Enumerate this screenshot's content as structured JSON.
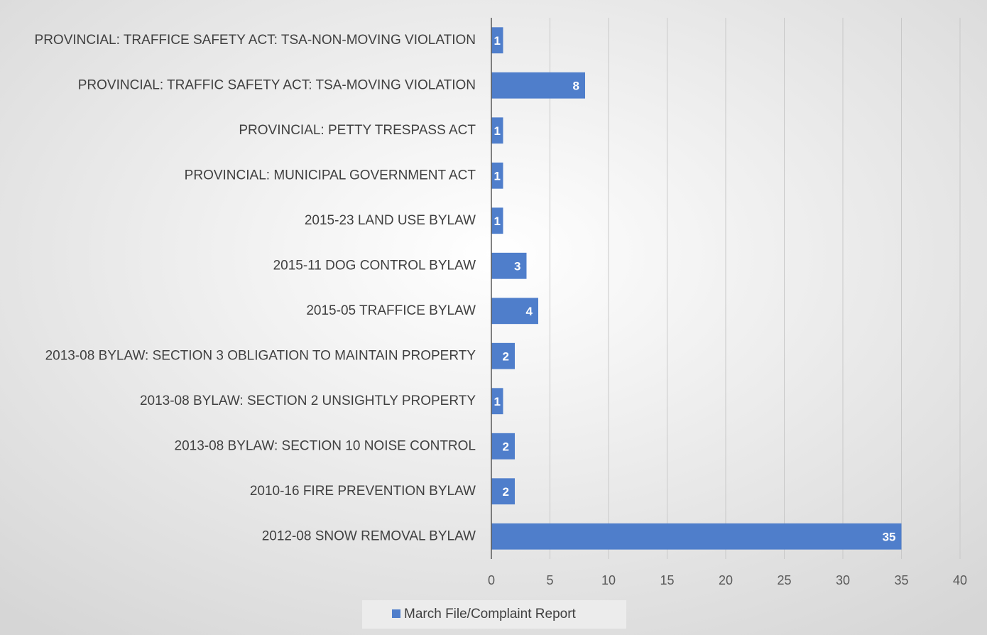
{
  "chart_data": {
    "type": "bar",
    "orientation": "horizontal",
    "categories": [
      "PROVINCIAL: TRAFFICE SAFETY ACT: TSA-NON-MOVING VIOLATION",
      "PROVINCIAL: TRAFFIC SAFETY ACT: TSA-MOVING VIOLATION",
      "PROVINCIAL: PETTY TRESPASS ACT",
      "PROVINCIAL: MUNICIPAL GOVERNMENT ACT",
      "2015-23 LAND USE BYLAW",
      "2015-11 DOG CONTROL BYLAW",
      "2015-05 TRAFFICE BYLAW",
      "2013-08 BYLAW: SECTION 3 OBLIGATION TO MAINTAIN PROPERTY",
      "2013-08 BYLAW: SECTION 2 UNSIGHTLY PROPERTY",
      "2013-08 BYLAW: SECTION 10 NOISE CONTROL",
      "2010-16 FIRE PREVENTION BYLAW",
      "2012-08 SNOW REMOVAL BYLAW"
    ],
    "series": [
      {
        "name": "March File/Complaint Report",
        "color": "#4f7ecb",
        "values": [
          1,
          8,
          1,
          1,
          1,
          3,
          4,
          2,
          1,
          2,
          2,
          35
        ]
      }
    ],
    "xlim": [
      0,
      40
    ],
    "xticks": [
      0,
      5,
      10,
      15,
      20,
      25,
      30,
      35,
      40
    ],
    "grid": true,
    "data_labels": true,
    "legend": "bottom"
  }
}
